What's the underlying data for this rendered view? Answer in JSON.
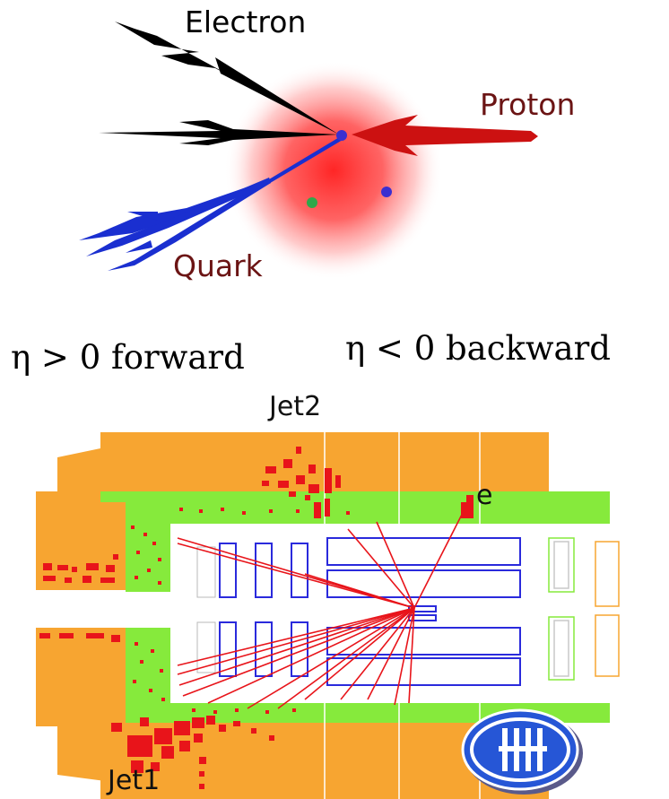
{
  "scattering": {
    "electron_label": "Electron",
    "proton_label": "Proton",
    "quark_label": "Quark",
    "colors": {
      "electron": "#000000",
      "proton": "#cc1111",
      "quark": "#1a2fd0",
      "proton_halo": "#ff2020",
      "parton_blue": "#3a2fd0",
      "parton_green": "#2fa84a"
    }
  },
  "rapidity": {
    "forward_label": "η > 0 forward",
    "backward_label": "η < 0 backward"
  },
  "event": {
    "jet2_label": "Jet2",
    "jet1_label": "Jet1",
    "electron_label": "e",
    "logo_text": "H1",
    "colors": {
      "calorimeter": "#f7a531",
      "inner_cal": "#86ea3c",
      "deposits": "#e8141a",
      "tracks": "#e8141a",
      "chambers": "#2a2adc",
      "logo": "#2656d6"
    }
  }
}
